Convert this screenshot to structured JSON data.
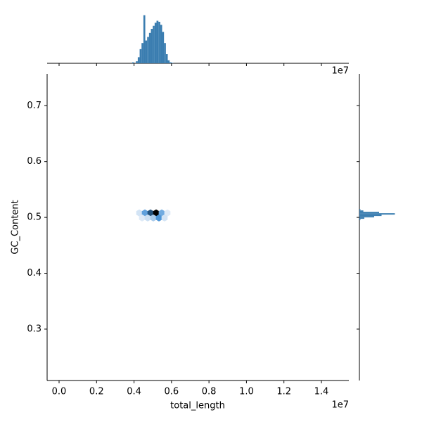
{
  "chart_data": {
    "type": "hexbin",
    "xlabel": "total_length",
    "ylabel": "GC_Content",
    "x_offset_label": "1e7",
    "xlim": [
      -0.0638,
      1.5465
    ],
    "ylim": [
      0.208,
      0.757
    ],
    "xticks": [
      {
        "value": 0,
        "label": "0.0"
      },
      0.2,
      0.4,
      0.6,
      0.8,
      {
        "value": 1,
        "label": "1.0"
      },
      1.2,
      1.4
    ],
    "yticks": [
      0.3,
      0.4,
      0.5,
      0.6,
      0.7
    ],
    "hexbins": {
      "x": [
        0.428,
        0.458,
        0.488,
        0.518,
        0.548,
        0.578,
        0.443,
        0.473,
        0.503,
        0.533,
        0.563
      ],
      "y": [
        0.508,
        0.508,
        0.508,
        0.508,
        0.508,
        0.508,
        0.499,
        0.499,
        0.499,
        0.499,
        0.499
      ],
      "counts": [
        8,
        40,
        70,
        100,
        35,
        5,
        5,
        10,
        20,
        45,
        8
      ]
    },
    "marginal_color": "#3a7db0",
    "x_marginal": {
      "bins": [
        0.39,
        0.4,
        0.41,
        0.42,
        0.43,
        0.44,
        0.45,
        0.46,
        0.47,
        0.48,
        0.49,
        0.5,
        0.51,
        0.52,
        0.53,
        0.54,
        0.55,
        0.56,
        0.57,
        0.58,
        0.59,
        0.6,
        0.61
      ],
      "counts": [
        2,
        0,
        4,
        12,
        28,
        40,
        95,
        45,
        52,
        60,
        68,
        74,
        80,
        84,
        82,
        76,
        62,
        40,
        18,
        6,
        2,
        1
      ],
      "lim": [
        0,
        100
      ]
    },
    "y_marginal": {
      "bins": [
        0.495,
        0.4975,
        0.5,
        0.5025,
        0.505,
        0.5075,
        0.51,
        0.5125,
        0.515
      ],
      "counts": [
        2,
        10,
        30,
        45,
        72,
        40,
        8,
        2
      ],
      "lim": [
        0,
        100
      ]
    }
  }
}
